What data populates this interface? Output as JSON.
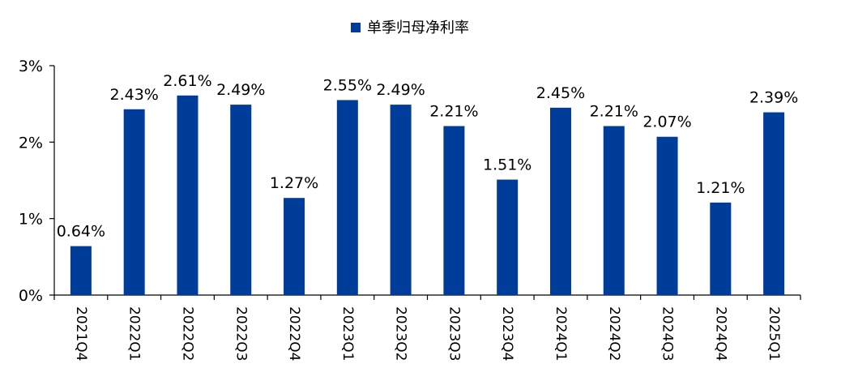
{
  "chart_data": {
    "type": "bar",
    "title": "",
    "xlabel": "",
    "ylabel": "",
    "legend": {
      "placement": "top-center",
      "entries": [
        "单季归母净利率"
      ]
    },
    "categories": [
      "2021Q4",
      "2022Q1",
      "2022Q2",
      "2022Q3",
      "2022Q4",
      "2023Q1",
      "2023Q2",
      "2023Q3",
      "2023Q4",
      "2024Q1",
      "2024Q2",
      "2024Q3",
      "2024Q4",
      "2025Q1"
    ],
    "series": [
      {
        "name": "单季归母净利率",
        "color": "#003C9A",
        "values": [
          0.64,
          2.43,
          2.61,
          2.49,
          1.27,
          2.55,
          2.49,
          2.21,
          1.51,
          2.45,
          2.21,
          2.07,
          1.21,
          2.39
        ],
        "labels": [
          "0.64%",
          "2.43%",
          "2.61%",
          "2.49%",
          "1.27%",
          "2.55%",
          "2.49%",
          "2.21%",
          "1.51%",
          "2.45%",
          "2.21%",
          "2.07%",
          "1.21%",
          "2.39%"
        ]
      }
    ],
    "ylim": [
      0,
      3
    ],
    "yticks": [
      {
        "value": 0,
        "label": "0%"
      },
      {
        "value": 1,
        "label": "1%"
      },
      {
        "value": 2,
        "label": "2%"
      },
      {
        "value": 3,
        "label": "3%"
      }
    ],
    "grid": false
  }
}
